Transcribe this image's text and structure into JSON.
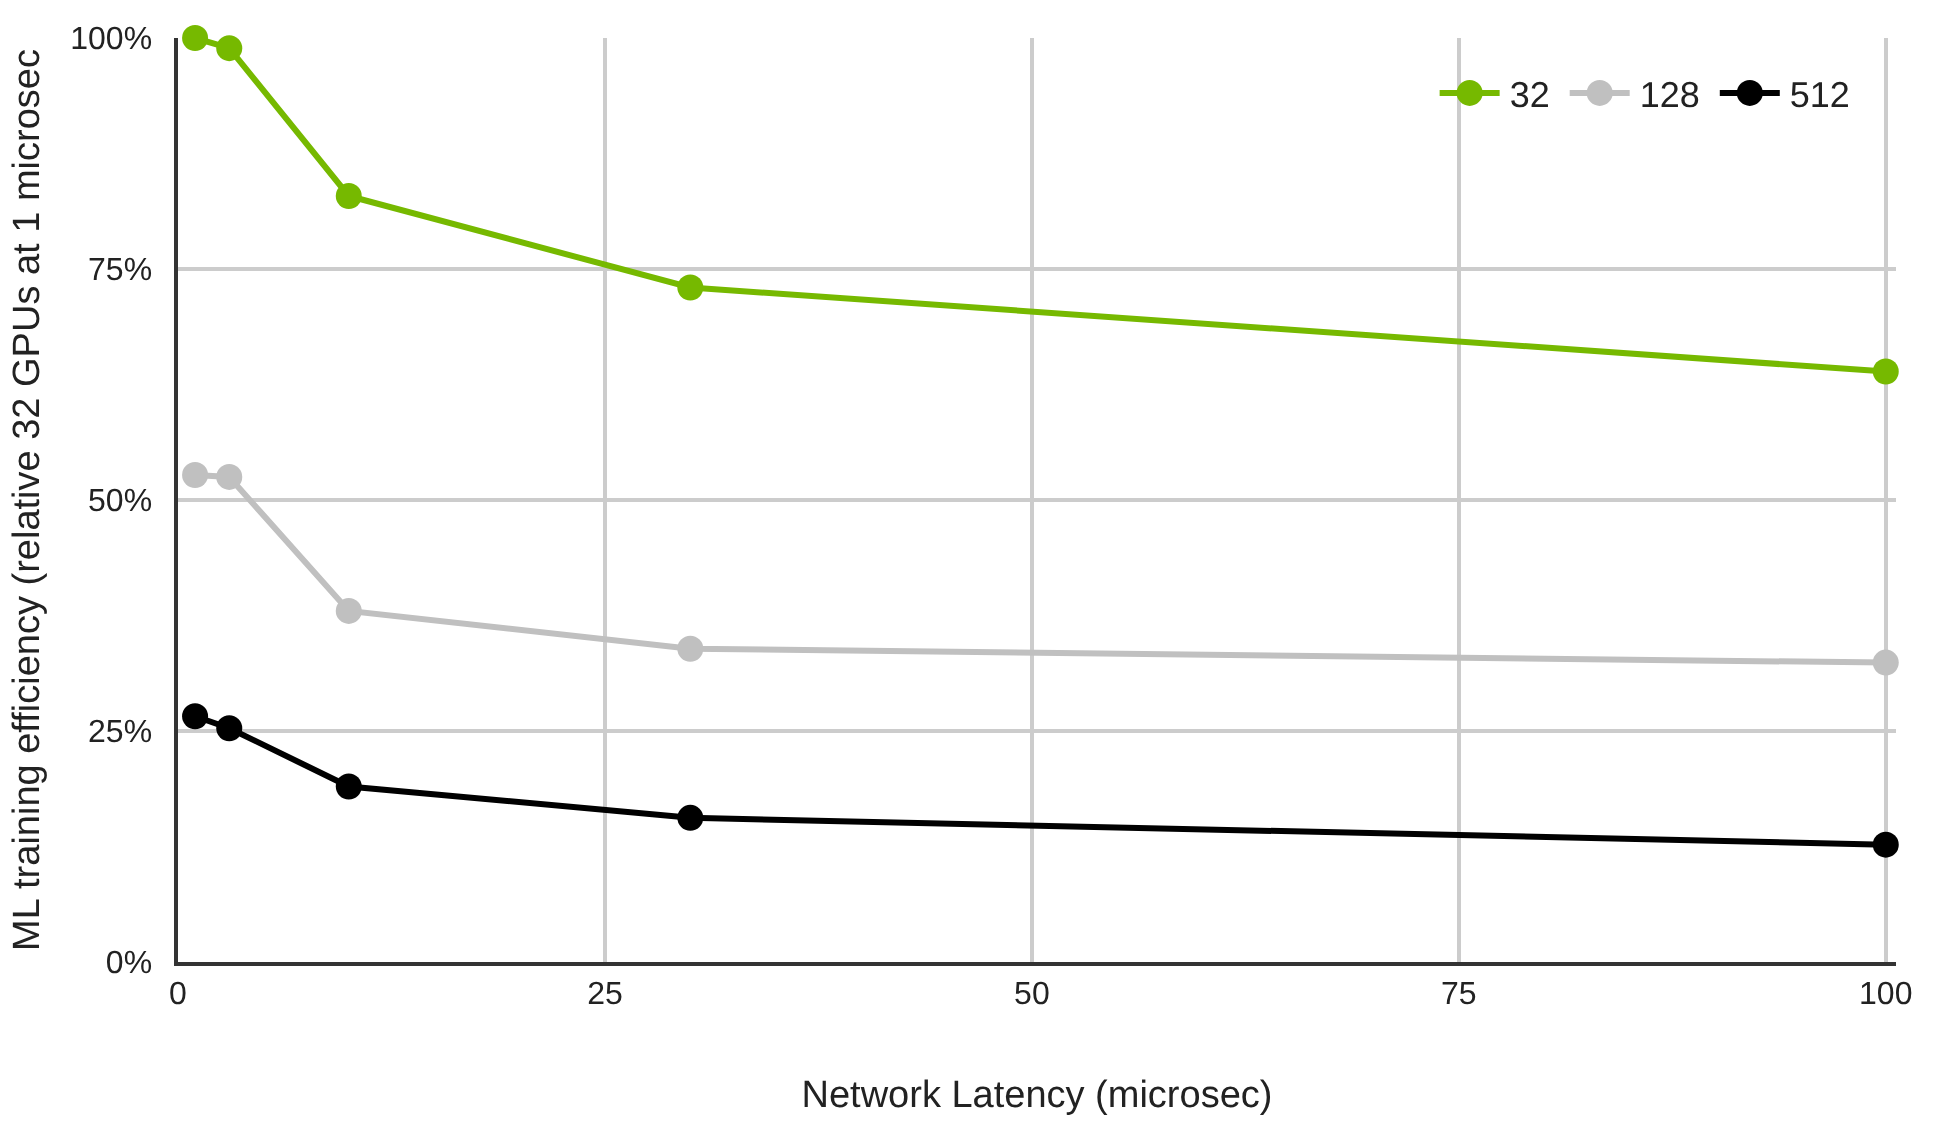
{
  "chart_data": {
    "type": "line",
    "xlabel": "Network Latency (microsec)",
    "ylabel": "ML training efficiency (relative 32 GPUs at 1 microsec",
    "x": [
      1,
      3,
      10,
      30,
      100
    ],
    "series": [
      {
        "name": "32",
        "color": "#76b900",
        "values": [
          100,
          98.9,
          82.9,
          73,
          63.9
        ]
      },
      {
        "name": "128",
        "color": "#c0c0c0",
        "values": [
          52.7,
          52.5,
          38,
          33.9,
          32.4
        ]
      },
      {
        "name": "512",
        "color": "#000000",
        "values": [
          26.6,
          25.3,
          19,
          15.6,
          12.7
        ]
      }
    ],
    "xlim": [
      0,
      100.6
    ],
    "xticks": [
      0,
      25,
      50,
      75,
      100
    ],
    "ylim": [
      0,
      100
    ],
    "yticks": [
      {
        "value": 0,
        "label": "0%"
      },
      {
        "value": 25,
        "label": "25%"
      },
      {
        "value": 50,
        "label": "50%"
      },
      {
        "value": 75,
        "label": "75%"
      },
      {
        "value": 100,
        "label": "100%"
      }
    ],
    "grid": true,
    "legend": "top right",
    "marker": "circle",
    "line_style": "solid"
  }
}
